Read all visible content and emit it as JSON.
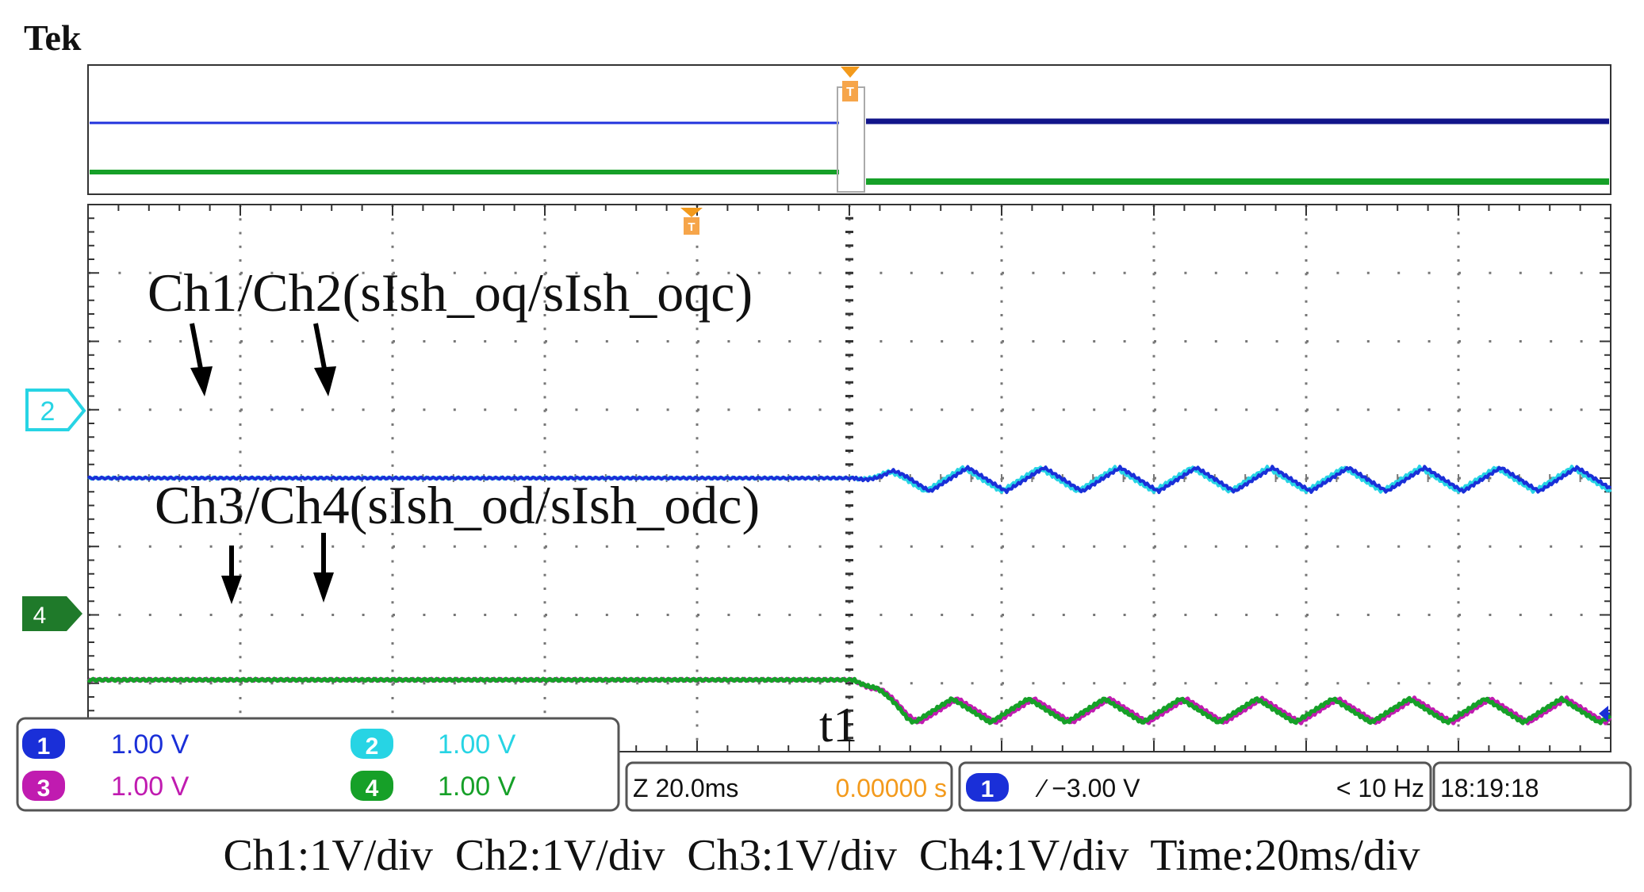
{
  "brand": "Tek",
  "annotations": {
    "q_label": "Ch1/Ch2(sIsh_oq/sIsh_oqc)",
    "d_label": "Ch3/Ch4(sIsh_od/sIsh_odc)",
    "t1": "t1"
  },
  "markers": {
    "ch2": "2",
    "ch4": "4"
  },
  "channels": [
    {
      "num": "1",
      "scale": "1.00 V",
      "color": "#1a2fd8"
    },
    {
      "num": "2",
      "scale": "1.00 V",
      "color": "#27d4e4"
    },
    {
      "num": "3",
      "scale": "1.00 V",
      "color": "#c01bb0"
    },
    {
      "num": "4",
      "scale": "1.00 V",
      "color": "#16a028"
    }
  ],
  "timebase": {
    "zoom": "Z 20.0ms",
    "position": "0.00000 s"
  },
  "trigger": {
    "source": "1",
    "level": "∕ −3.00 V",
    "freq": "< 10 Hz"
  },
  "clock": "18:19:18",
  "footer": "Ch1:1V/div  Ch2:1V/div  Ch3:1V/div  Ch4:1V/div  Time:20ms/div",
  "colors": {
    "ch1": "#1a2fd8",
    "ch2": "#27d4e4",
    "ch3": "#c01bb0",
    "ch4": "#16a028",
    "trigger_marker": "#f39a1c"
  },
  "chart_data": {
    "type": "line",
    "xlabel": "",
    "ylabel": "",
    "xlim": [
      0,
      10
    ],
    "ylim": [
      -4,
      4
    ],
    "x_unit_per_div": "20ms",
    "y_unit_per_div": "1V",
    "event_div": 5.03,
    "series": [
      {
        "name": "sIsh_oq",
        "color": "#1a2fd8",
        "pre_level": 0.0,
        "post_mean": -0.02,
        "ripple_pp": 0.35,
        "ripple_period_div": 0.5
      },
      {
        "name": "sIsh_oqc",
        "color": "#27d4e4",
        "pre_level": 0.0,
        "post_mean": -0.02,
        "ripple_pp": 0.35,
        "ripple_period_div": 0.5
      },
      {
        "name": "sIsh_od",
        "color": "#c01bb0",
        "pre_level": -2.95,
        "post_mean": -3.4,
        "ripple_pp": 0.35,
        "ripple_period_div": 0.5
      },
      {
        "name": "sIsh_odc",
        "color": "#16a028",
        "pre_level": -2.95,
        "post_mean": -3.4,
        "ripple_pp": 0.35,
        "ripple_period_div": 0.5
      }
    ]
  }
}
